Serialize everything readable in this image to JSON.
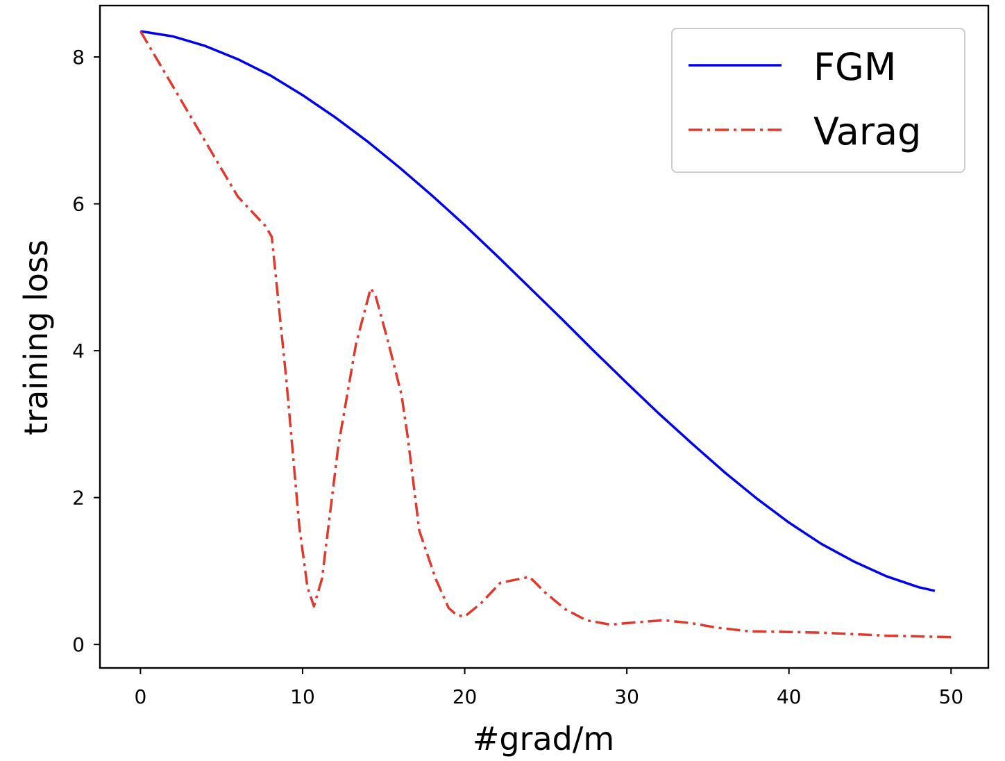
{
  "chart_data": {
    "type": "line",
    "xlabel": "#grad/m",
    "ylabel": "training loss",
    "xlim": [
      -2.5,
      52.3
    ],
    "ylim": [
      -0.32,
      8.7
    ],
    "xticks": [
      0,
      10,
      20,
      30,
      40,
      50
    ],
    "yticks": [
      0,
      2,
      4,
      6,
      8
    ],
    "grid": false,
    "legend_position": "top-right",
    "series": [
      {
        "name": "FGM",
        "color": "#0000ee",
        "style": "solid",
        "x": [
          0,
          2,
          4,
          6,
          8,
          10,
          12,
          14,
          16,
          18,
          20,
          22,
          24,
          26,
          28,
          30,
          32,
          34,
          36,
          38,
          40,
          42,
          44,
          46,
          48,
          49
        ],
        "y": [
          8.35,
          8.28,
          8.15,
          7.97,
          7.75,
          7.48,
          7.18,
          6.85,
          6.49,
          6.11,
          5.71,
          5.29,
          4.86,
          4.43,
          3.99,
          3.56,
          3.14,
          2.74,
          2.35,
          1.99,
          1.66,
          1.37,
          1.13,
          0.93,
          0.78,
          0.73
        ]
      },
      {
        "name": "Varag",
        "color": "#e0382c",
        "style": "dashdot",
        "x": [
          0,
          2,
          4,
          6,
          7.7,
          8.1,
          9,
          9.8,
          10.3,
          10.7,
          11.2,
          12.2,
          13.3,
          14.2,
          14.5,
          15.3,
          16.1,
          16.5,
          17.2,
          18.2,
          19,
          19.5,
          20,
          21,
          22.2,
          24,
          25,
          26.2,
          27.5,
          29,
          30.5,
          32.3,
          34,
          35.5,
          37.5,
          40,
          42,
          44,
          46,
          48,
          50
        ],
        "y": [
          8.35,
          7.6,
          6.85,
          6.1,
          5.7,
          5.55,
          3.6,
          1.6,
          0.78,
          0.52,
          0.9,
          2.7,
          4.1,
          4.85,
          4.75,
          4.1,
          3.4,
          2.8,
          1.55,
          0.9,
          0.5,
          0.4,
          0.38,
          0.56,
          0.84,
          0.92,
          0.7,
          0.48,
          0.33,
          0.27,
          0.3,
          0.33,
          0.29,
          0.23,
          0.18,
          0.17,
          0.16,
          0.14,
          0.12,
          0.11,
          0.1
        ]
      }
    ]
  }
}
